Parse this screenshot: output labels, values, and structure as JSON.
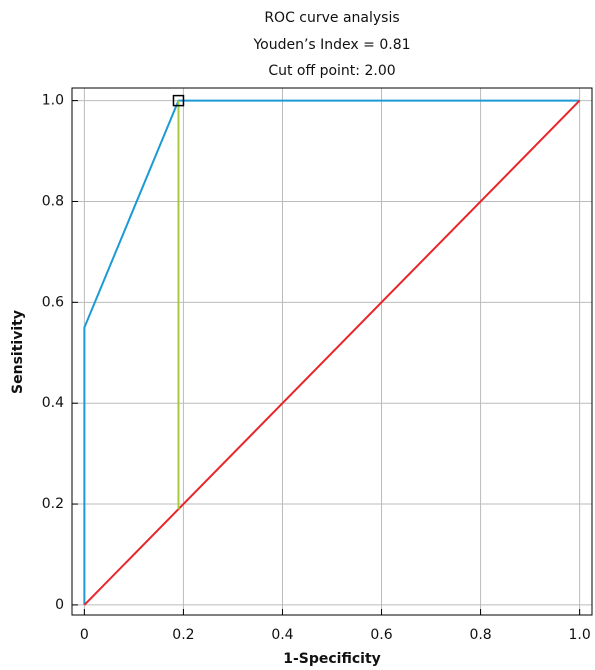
{
  "chart_data": {
    "type": "line",
    "title": [
      "ROC curve analysis",
      "Youden’s Index = 0.81",
      "Cut off point: 2.00"
    ],
    "x_label": "1-Specificity",
    "y_label": "Sensitivity",
    "xlim": [
      -0.025,
      1.025
    ],
    "ylim": [
      -0.02,
      1.025
    ],
    "xticks": [
      0,
      0.2,
      0.4,
      0.6,
      0.8,
      {
        "value": 1,
        "label": "1.0"
      }
    ],
    "yticks": [
      0,
      0.2,
      0.4,
      0.6,
      0.8,
      {
        "value": 1,
        "label": "1.0"
      }
    ],
    "grid": true,
    "series": [
      {
        "color": "#1a9ad6",
        "x": [
          0,
          0,
          0.19,
          1
        ],
        "values": [
          0,
          0.55,
          1,
          1
        ]
      },
      {
        "color": "#e8262a",
        "x": [
          0,
          1
        ],
        "values": [
          0,
          1
        ]
      },
      {
        "color": "#a6cc3c",
        "x": [
          0.19,
          0.19
        ],
        "values": [
          0.19,
          1
        ]
      }
    ],
    "cutoff_point": {
      "x": 0.19,
      "y": 1,
      "color": "#000000"
    }
  }
}
